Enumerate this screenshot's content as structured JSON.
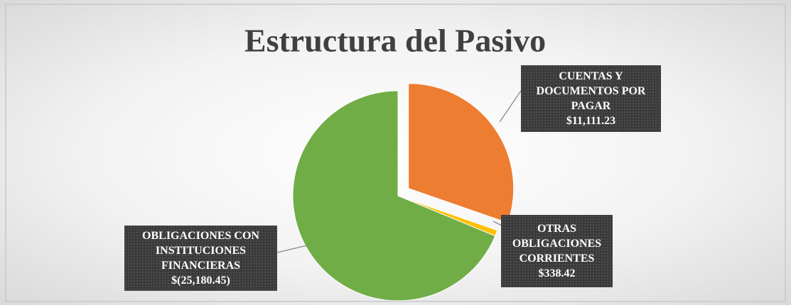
{
  "chart_data": {
    "type": "pie",
    "title": "Estructura del Pasivo",
    "categories": [
      "CUENTAS Y DOCUMENTOS POR PAGAR",
      "OTRAS OBLIGACIONES CORRIENTES",
      "OBLIGACIONES CON INSTITUCIONES FINANCIERAS"
    ],
    "values": [
      11111.23,
      338.42,
      -25180.45
    ],
    "value_labels": [
      "$11,111.23",
      "$338.42",
      "$(25,180.45)"
    ],
    "colors": [
      "#ED7D31",
      "#FFC000",
      "#70AD47"
    ],
    "exploded": [
      true,
      false,
      false
    ]
  }
}
